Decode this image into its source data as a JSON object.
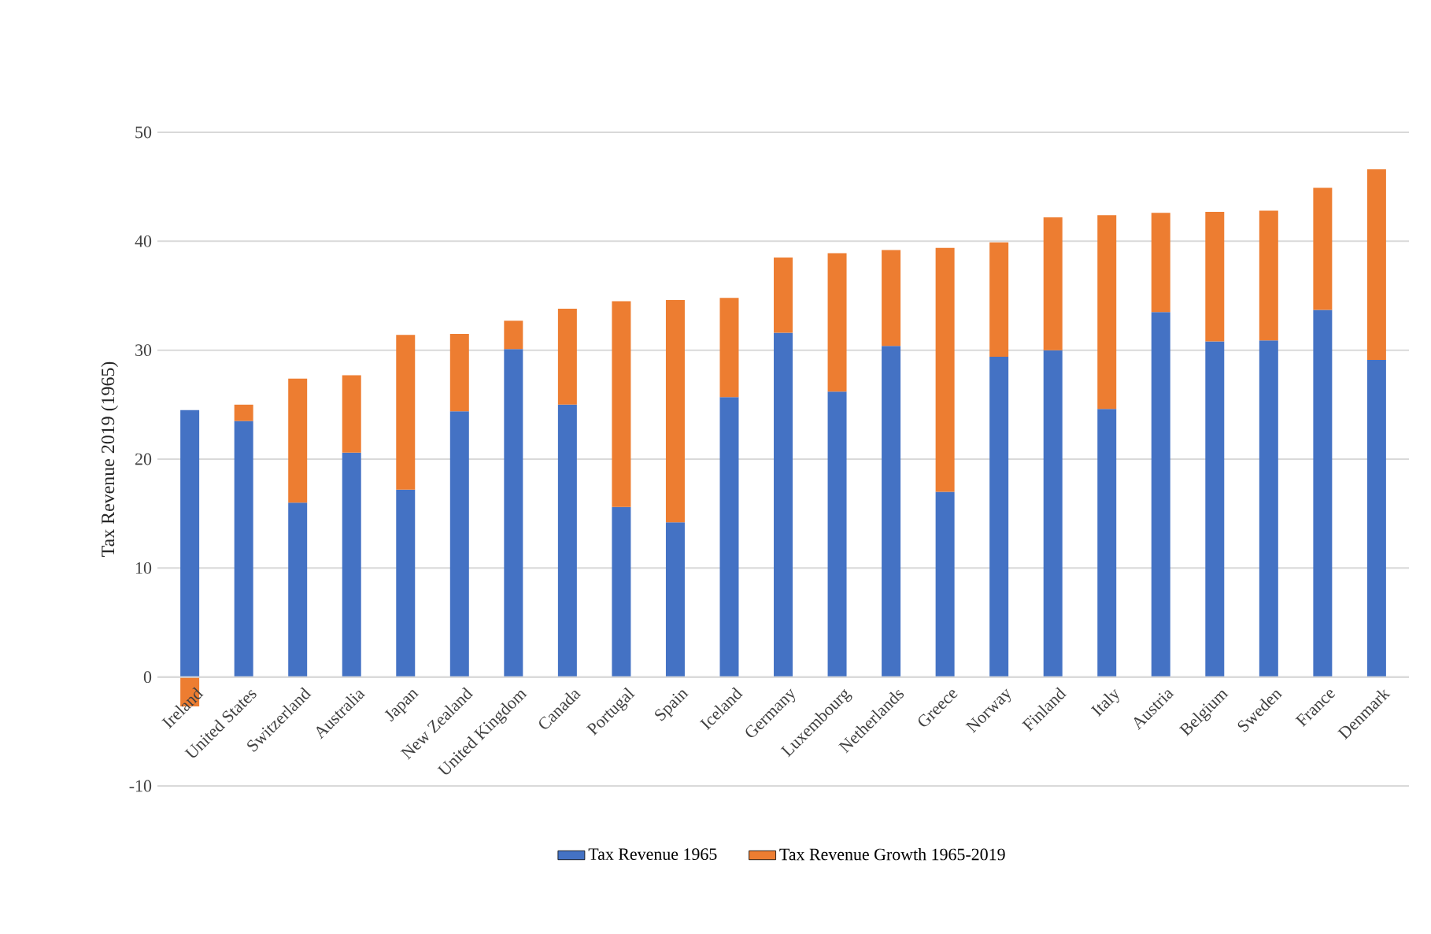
{
  "chart_data": {
    "type": "bar",
    "stacked": true,
    "ylabel": "Tax Revenue  2019 (1965)",
    "categories": [
      "Ireland",
      "United States",
      "Switzerland",
      "Australia",
      "Japan",
      "New Zealand",
      "United Kingdom",
      "Canada",
      "Portugal",
      "Spain",
      "Iceland",
      "Germany",
      "Luxembourg",
      "Netherlands",
      "Greece",
      "Norway",
      "Finland",
      "Italy",
      "Austria",
      "Belgium",
      "Sweden",
      "France",
      "Denmark"
    ],
    "series": [
      {
        "name": "Tax Revenue 1965",
        "color": "#4472c4",
        "values": [
          24.5,
          23.5,
          16.0,
          20.6,
          17.2,
          24.4,
          30.1,
          25.0,
          15.6,
          14.2,
          25.7,
          31.6,
          26.2,
          30.4,
          17.0,
          29.4,
          30.0,
          24.6,
          33.5,
          30.8,
          30.9,
          33.7,
          29.1
        ]
      },
      {
        "name": "Tax Revenue Growth 1965-2019",
        "color": "#ed7d31",
        "values": [
          -2.7,
          1.5,
          11.4,
          7.1,
          14.2,
          7.1,
          2.6,
          8.8,
          18.9,
          20.4,
          9.1,
          6.9,
          12.7,
          8.8,
          22.4,
          10.5,
          12.2,
          17.8,
          9.1,
          11.9,
          11.9,
          11.2,
          17.5
        ]
      }
    ],
    "ylim": [
      -10,
      50
    ],
    "yticks": [
      -10,
      0,
      10,
      20,
      30,
      40,
      50
    ],
    "grid": "y",
    "legend": "bottom"
  }
}
